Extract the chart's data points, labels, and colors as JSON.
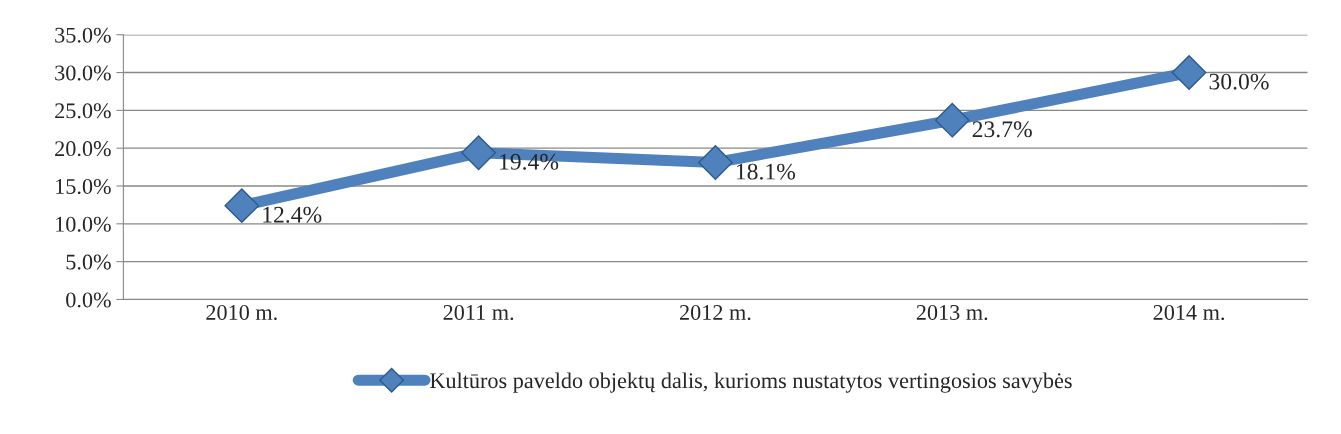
{
  "chart_data": {
    "type": "line",
    "categories": [
      "2010 m.",
      "2011 m.",
      "2012 m.",
      "2013 m.",
      "2014 m."
    ],
    "series": [
      {
        "name": "Kultūros paveldo objektų dalis, kurioms nustatytos vertingosios savybės",
        "color": "#4f81bd",
        "values": [
          12.4,
          19.4,
          18.1,
          23.7,
          30.0
        ],
        "value_labels": [
          "12.4%",
          "19.4%",
          "18.1%",
          "23.7%",
          "30.0%"
        ]
      }
    ],
    "ylim": [
      0,
      35
    ],
    "yticks": [
      {
        "value": 0,
        "label": "0.0%"
      },
      {
        "value": 5,
        "label": "5.0%"
      },
      {
        "value": 10,
        "label": "10.0%"
      },
      {
        "value": 15,
        "label": "15.0%"
      },
      {
        "value": 20,
        "label": "20.0%"
      },
      {
        "value": 25,
        "label": "25.0%"
      },
      {
        "value": 30,
        "label": "30.0%"
      },
      {
        "value": 35,
        "label": "35.0%"
      }
    ],
    "grid": "y",
    "legend": "bottom",
    "marker": "diamond",
    "line_style": "solid"
  }
}
